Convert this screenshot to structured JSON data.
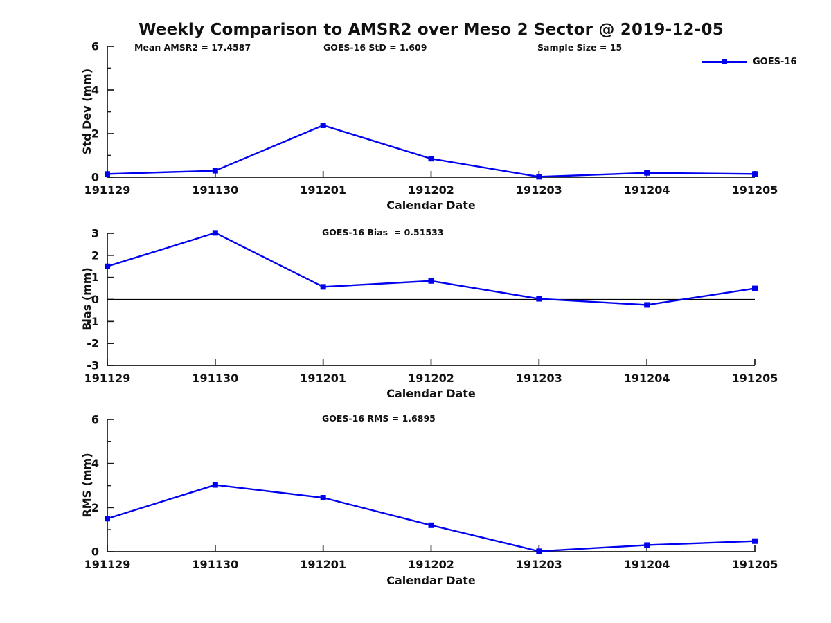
{
  "title": "Weekly Comparison to AMSR2 over Meso 2 Sector @ 2019-12-05",
  "annotations": {
    "mean_amsr2": "Mean AMSR2 = 17.4587",
    "goes_std": "GOES-16 StD = 1.609",
    "sample_size": "Sample Size = 15",
    "goes_bias": "GOES-16 Bias  = 0.51533",
    "goes_rms": "GOES-16 RMS = 1.6895"
  },
  "legend": {
    "label": "GOES-16",
    "marker": "filled-square",
    "position": "top-right"
  },
  "colors": {
    "series_blue": "#0000EE",
    "axis": "#1a1a1a",
    "zero_line": "#000000",
    "background": "#ffffff"
  },
  "chart_data": [
    {
      "type": "line",
      "panel": "std-dev",
      "categories": [
        "191129",
        "191130",
        "191201",
        "191202",
        "191203",
        "191204",
        "191205"
      ],
      "series": [
        {
          "name": "GOES-16",
          "color": "#0000EE",
          "marker": "square",
          "values": [
            0.15,
            0.3,
            2.38,
            0.85,
            0.02,
            0.2,
            0.15
          ]
        }
      ],
      "xlabel": "Calendar Date",
      "ylabel": "Std Dev (mm)",
      "ylim": [
        0,
        6
      ],
      "yticks": [
        0,
        2,
        4,
        6
      ],
      "yticks_minor": [
        1,
        3,
        5
      ],
      "zero_line": false,
      "grid": false
    },
    {
      "type": "line",
      "panel": "bias",
      "categories": [
        "191129",
        "191130",
        "191201",
        "191202",
        "191203",
        "191204",
        "191205"
      ],
      "series": [
        {
          "name": "GOES-16",
          "color": "#0000EE",
          "marker": "square",
          "values": [
            1.5,
            3.02,
            0.57,
            0.84,
            0.03,
            -0.25,
            0.5
          ]
        }
      ],
      "xlabel": "Calendar Date",
      "ylabel": "Bias (mm)",
      "ylim": [
        -3,
        3
      ],
      "yticks": [
        -3,
        -2,
        -1,
        0,
        1,
        2,
        3
      ],
      "yticks_minor": [],
      "zero_line": true,
      "grid": false
    },
    {
      "type": "line",
      "panel": "rms",
      "categories": [
        "191129",
        "191130",
        "191201",
        "191202",
        "191203",
        "191204",
        "191205"
      ],
      "series": [
        {
          "name": "GOES-16",
          "color": "#0000EE",
          "marker": "square",
          "values": [
            1.5,
            3.03,
            2.45,
            1.2,
            0.02,
            0.3,
            0.48
          ]
        }
      ],
      "xlabel": "Calendar Date",
      "ylabel": "RMS (mm)",
      "ylim": [
        0,
        6
      ],
      "yticks": [
        0,
        2,
        4,
        6
      ],
      "yticks_minor": [
        1,
        3,
        5
      ],
      "zero_line": false,
      "grid": false
    }
  ]
}
